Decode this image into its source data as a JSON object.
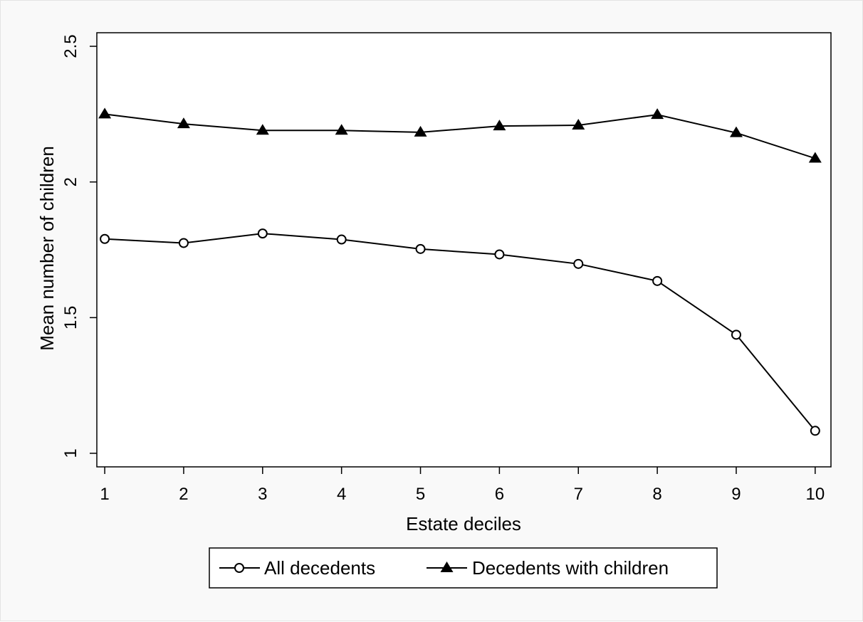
{
  "chart_data": {
    "type": "line",
    "title": "",
    "xlabel": "Estate deciles",
    "ylabel": "Mean number of children",
    "x": [
      1,
      2,
      3,
      4,
      5,
      6,
      7,
      8,
      9,
      10
    ],
    "xticks": [
      1,
      2,
      3,
      4,
      5,
      6,
      7,
      8,
      9,
      10
    ],
    "yticks": [
      1,
      1.5,
      2,
      2.5
    ],
    "ytick_labels": [
      "1",
      "1.5",
      "2",
      "2.5"
    ],
    "xlim": [
      0.9,
      10.2
    ],
    "ylim": [
      0.95,
      2.55
    ],
    "grid": false,
    "legend_position": "bottom",
    "series": [
      {
        "name": "All decedents",
        "marker": "hollow-circle",
        "color": "#000000",
        "values": [
          1.79,
          1.775,
          1.81,
          1.788,
          1.753,
          1.733,
          1.698,
          1.635,
          1.437,
          1.083
        ]
      },
      {
        "name": "Decedents with children",
        "marker": "filled-triangle",
        "color": "#000000",
        "values": [
          2.25,
          2.214,
          2.19,
          2.19,
          2.183,
          2.206,
          2.209,
          2.248,
          2.181,
          2.087
        ]
      }
    ]
  }
}
